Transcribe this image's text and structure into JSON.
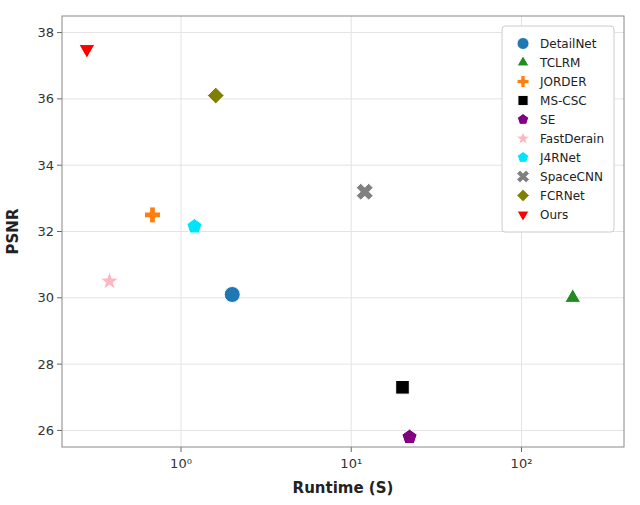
{
  "chart_data": {
    "type": "scatter",
    "xlabel": "Runtime (S)",
    "ylabel": "PSNR",
    "series": [
      {
        "name": "DetailNet",
        "color": "#1f77b4",
        "marker": "circle",
        "x": [
          2.0
        ],
        "values": [
          30.1
        ]
      },
      {
        "name": "TCLRM",
        "color": "#228B22",
        "marker": "triangle-up",
        "x": [
          200
        ],
        "values": [
          30.0
        ]
      },
      {
        "name": "JORDER",
        "color": "#ff7f0e",
        "marker": "plus",
        "x": [
          0.68
        ],
        "values": [
          32.5
        ]
      },
      {
        "name": "MS-CSC",
        "color": "#000000",
        "marker": "square",
        "x": [
          20
        ],
        "values": [
          27.3
        ]
      },
      {
        "name": "SE",
        "color": "#800080",
        "marker": "pentagon",
        "x": [
          22
        ],
        "values": [
          25.8
        ]
      },
      {
        "name": "FastDerain",
        "color": "#ffb6c1",
        "marker": "star",
        "x": [
          0.38
        ],
        "values": [
          30.5
        ]
      },
      {
        "name": "J4RNet",
        "color": "#00e5ff",
        "marker": "pentagon",
        "x": [
          1.2
        ],
        "values": [
          32.15
        ]
      },
      {
        "name": "SpaceCNN",
        "color": "#808080",
        "marker": "x",
        "x": [
          12
        ],
        "values": [
          33.2
        ]
      },
      {
        "name": "FCRNet",
        "color": "#808000",
        "marker": "diamond",
        "x": [
          1.6
        ],
        "values": [
          36.1
        ]
      },
      {
        "name": "Ours",
        "color": "#ff0000",
        "marker": "triangle-down",
        "x": [
          0.28
        ],
        "values": [
          37.5
        ]
      }
    ],
    "xlim": [
      0.2,
      400
    ],
    "ylim": [
      25.5,
      38.5
    ],
    "xticks": [
      {
        "value": 1,
        "label": "10⁰"
      },
      {
        "value": 10,
        "label": "10¹"
      },
      {
        "value": 100,
        "label": "10²"
      }
    ],
    "yticks": [
      26,
      28,
      30,
      32,
      34,
      36,
      38
    ],
    "log": "x",
    "grid": true,
    "legend": "upper right"
  }
}
